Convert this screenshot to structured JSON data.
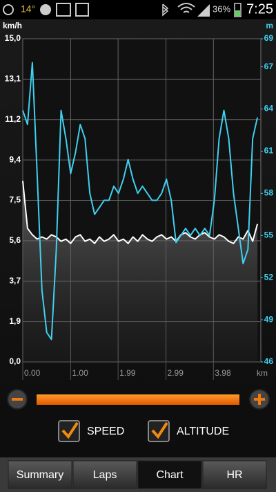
{
  "status_bar": {
    "temperature": "14°",
    "battery": "36%",
    "time": "7:25"
  },
  "chart_data": {
    "type": "line",
    "ylabel": "km/h",
    "y2label": "m",
    "xlabel": "km",
    "x": [
      0.0,
      0.1,
      0.2,
      0.3,
      0.4,
      0.5,
      0.6,
      0.7,
      0.8,
      0.9,
      1.0,
      1.1,
      1.2,
      1.3,
      1.4,
      1.5,
      1.6,
      1.7,
      1.8,
      1.9,
      2.0,
      2.1,
      2.2,
      2.3,
      2.4,
      2.5,
      2.6,
      2.7,
      2.8,
      2.9,
      3.0,
      3.1,
      3.2,
      3.3,
      3.4,
      3.5,
      3.6,
      3.7,
      3.8,
      3.9,
      4.0,
      4.1,
      4.2,
      4.3,
      4.4,
      4.5,
      4.6,
      4.7,
      4.8,
      4.9
    ],
    "xlim": [
      0,
      4.97
    ],
    "xticks": [
      {
        "value": 0,
        "label": "0.00"
      },
      {
        "value": 1,
        "label": "1.00"
      },
      1.99,
      2.99,
      3.98
    ],
    "ylim": [
      0,
      15
    ],
    "yticks": [
      {
        "value": 0,
        "label": "0,0"
      },
      {
        "value": 1.875,
        "label": "1,9"
      },
      {
        "value": 3.75,
        "label": "3,7"
      },
      {
        "value": 5.625,
        "label": "5,6"
      },
      {
        "value": 7.5,
        "label": "7,5"
      },
      {
        "value": 9.375,
        "label": "9,4"
      },
      {
        "value": 11.25,
        "label": "11,2"
      },
      {
        "value": 13.125,
        "label": "13,1"
      },
      {
        "value": 15,
        "label": "15,0"
      }
    ],
    "y2lim": [
      46,
      69
    ],
    "y2ticks": [
      46,
      49,
      52,
      55,
      58,
      61,
      64,
      67,
      69
    ],
    "grid": true,
    "series": [
      {
        "name": "SPEED",
        "color": "#ffffff",
        "values": [
          8.4,
          6.2,
          5.9,
          5.7,
          5.8,
          5.7,
          5.9,
          5.8,
          5.6,
          5.7,
          5.5,
          5.8,
          5.9,
          5.6,
          5.7,
          5.5,
          5.8,
          5.6,
          5.7,
          5.9,
          5.6,
          5.7,
          5.5,
          5.8,
          5.6,
          5.9,
          5.7,
          5.6,
          5.8,
          5.9,
          5.7,
          5.8,
          5.6,
          5.9,
          6.0,
          5.8,
          5.7,
          5.9,
          6.0,
          5.8,
          5.7,
          5.9,
          5.8,
          5.6,
          5.5,
          5.8,
          5.7,
          6.1,
          5.6,
          6.4
        ]
      },
      {
        "name": "ALTITUDE",
        "color": "#3fd0f0",
        "axis": "y2",
        "values": [
          63.9,
          62.9,
          67.3,
          59.4,
          51.1,
          48.1,
          47.6,
          54.0,
          63.9,
          61.9,
          59.4,
          60.9,
          62.9,
          61.9,
          58.0,
          56.5,
          57.0,
          57.5,
          57.5,
          58.5,
          58.0,
          59.0,
          60.4,
          59.0,
          58.0,
          58.5,
          58.0,
          57.5,
          57.5,
          58.0,
          59.0,
          57.5,
          54.5,
          55.0,
          55.5,
          55.0,
          55.5,
          55.0,
          55.5,
          55.0,
          57.5,
          61.9,
          63.9,
          61.9,
          58.0,
          55.5,
          53.0,
          54.0,
          61.9,
          63.4
        ]
      }
    ]
  },
  "tabs": [
    "Summary",
    "Laps",
    "Chart",
    "HR"
  ],
  "selected_tab": 2
}
